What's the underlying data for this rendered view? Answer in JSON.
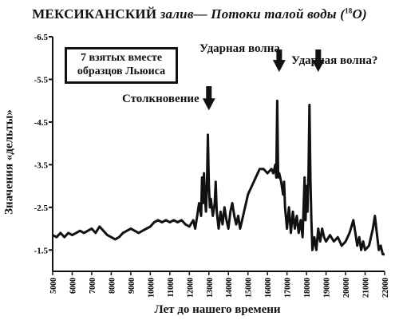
{
  "chart_data": {
    "type": "line",
    "title_main": "МЕКСИКАНСКИЙ",
    "title_rest": "залив— Потоки талой воды (",
    "title_sup": "18",
    "title_end": "O)",
    "xlabel": "Лет до нашего времени",
    "ylabel": "Значения «дельты»",
    "legend_text_1": "7 взятых вместе",
    "legend_text_2": "образцов Льюиса",
    "xlim": [
      5000,
      22000
    ],
    "ylim": [
      -1.0,
      -6.5
    ],
    "x_ticks": [
      "5000",
      "6000",
      "7000",
      "8000",
      "9000",
      "10000",
      "11000",
      "12000",
      "13000",
      "14000",
      "15000",
      "16000",
      "17000",
      "18000",
      "19000",
      "20000",
      "21000",
      "22000"
    ],
    "y_ticks": [
      {
        "value": -6.5,
        "label": "-6.5"
      },
      {
        "value": -5.5,
        "label": "-5.5"
      },
      {
        "value": -4.5,
        "label": "-4.5"
      },
      {
        "value": -3.5,
        "label": "-3.5"
      },
      {
        "value": -2.5,
        "label": "-2.5"
      },
      {
        "value": -1.5,
        "label": "-1.5"
      }
    ],
    "annotations": [
      {
        "label": "Столкновение",
        "x": 13000,
        "y": -4.7
      },
      {
        "label": "Ударная волна",
        "x": 16600,
        "y": -5.6
      },
      {
        "label": "Ударная волна?",
        "x": 18600,
        "y": -5.6
      }
    ],
    "series": [
      {
        "points": [
          [
            5000,
            -1.85
          ],
          [
            5200,
            -1.8
          ],
          [
            5400,
            -1.9
          ],
          [
            5600,
            -1.8
          ],
          [
            5800,
            -1.9
          ],
          [
            6000,
            -1.85
          ],
          [
            6200,
            -1.9
          ],
          [
            6400,
            -1.95
          ],
          [
            6600,
            -1.9
          ],
          [
            6800,
            -1.95
          ],
          [
            7000,
            -2.0
          ],
          [
            7200,
            -1.9
          ],
          [
            7400,
            -2.05
          ],
          [
            7600,
            -1.95
          ],
          [
            7800,
            -1.85
          ],
          [
            8000,
            -1.8
          ],
          [
            8200,
            -1.75
          ],
          [
            8400,
            -1.8
          ],
          [
            8600,
            -1.9
          ],
          [
            8800,
            -1.95
          ],
          [
            9000,
            -2.0
          ],
          [
            9200,
            -1.95
          ],
          [
            9400,
            -1.9
          ],
          [
            9600,
            -1.95
          ],
          [
            9800,
            -2.0
          ],
          [
            10000,
            -2.05
          ],
          [
            10200,
            -2.15
          ],
          [
            10400,
            -2.2
          ],
          [
            10600,
            -2.15
          ],
          [
            10800,
            -2.2
          ],
          [
            11000,
            -2.15
          ],
          [
            11200,
            -2.2
          ],
          [
            11400,
            -2.15
          ],
          [
            11600,
            -2.2
          ],
          [
            11800,
            -2.1
          ],
          [
            12000,
            -2.05
          ],
          [
            12200,
            -2.2
          ],
          [
            12300,
            -2.0
          ],
          [
            12400,
            -2.3
          ],
          [
            12500,
            -2.6
          ],
          [
            12600,
            -2.3
          ],
          [
            12650,
            -3.2
          ],
          [
            12700,
            -2.6
          ],
          [
            12750,
            -3.3
          ],
          [
            12800,
            -2.7
          ],
          [
            12850,
            -2.4
          ],
          [
            12900,
            -3.0
          ],
          [
            12950,
            -4.2
          ],
          [
            13000,
            -3.0
          ],
          [
            13050,
            -2.5
          ],
          [
            13100,
            -2.7
          ],
          [
            13200,
            -2.3
          ],
          [
            13300,
            -2.6
          ],
          [
            13350,
            -3.1
          ],
          [
            13400,
            -2.4
          ],
          [
            13500,
            -2.0
          ],
          [
            13600,
            -2.4
          ],
          [
            13700,
            -2.1
          ],
          [
            13800,
            -2.5
          ],
          [
            13900,
            -2.2
          ],
          [
            14000,
            -2.0
          ],
          [
            14100,
            -2.4
          ],
          [
            14200,
            -2.6
          ],
          [
            14300,
            -2.3
          ],
          [
            14400,
            -2.1
          ],
          [
            14500,
            -2.3
          ],
          [
            14600,
            -2.0
          ],
          [
            14700,
            -2.2
          ],
          [
            14800,
            -2.4
          ],
          [
            14900,
            -2.6
          ],
          [
            15000,
            -2.8
          ],
          [
            15200,
            -3.0
          ],
          [
            15400,
            -3.2
          ],
          [
            15600,
            -3.4
          ],
          [
            15800,
            -3.4
          ],
          [
            16000,
            -3.3
          ],
          [
            16200,
            -3.4
          ],
          [
            16300,
            -3.3
          ],
          [
            16400,
            -3.5
          ],
          [
            16450,
            -3.2
          ],
          [
            16500,
            -5.0
          ],
          [
            16550,
            -3.2
          ],
          [
            16600,
            -3.3
          ],
          [
            16700,
            -3.1
          ],
          [
            16800,
            -2.8
          ],
          [
            16850,
            -3.1
          ],
          [
            16900,
            -2.5
          ],
          [
            17000,
            -2.0
          ],
          [
            17100,
            -2.5
          ],
          [
            17200,
            -1.9
          ],
          [
            17300,
            -2.4
          ],
          [
            17400,
            -2.0
          ],
          [
            17500,
            -2.3
          ],
          [
            17600,
            -1.9
          ],
          [
            17700,
            -2.2
          ],
          [
            17800,
            -1.8
          ],
          [
            17900,
            -3.2
          ],
          [
            17950,
            -2.2
          ],
          [
            18000,
            -3.0
          ],
          [
            18050,
            -2.4
          ],
          [
            18100,
            -3.3
          ],
          [
            18150,
            -4.9
          ],
          [
            18200,
            -3.2
          ],
          [
            18250,
            -2.2
          ],
          [
            18300,
            -1.5
          ],
          [
            18400,
            -1.8
          ],
          [
            18500,
            -1.5
          ],
          [
            18600,
            -2.0
          ],
          [
            18700,
            -1.7
          ],
          [
            18800,
            -2.0
          ],
          [
            18900,
            -1.8
          ],
          [
            19000,
            -1.7
          ],
          [
            19200,
            -1.85
          ],
          [
            19400,
            -1.7
          ],
          [
            19600,
            -1.8
          ],
          [
            19800,
            -1.6
          ],
          [
            20000,
            -1.7
          ],
          [
            20200,
            -1.9
          ],
          [
            20400,
            -2.2
          ],
          [
            20500,
            -1.9
          ],
          [
            20600,
            -1.6
          ],
          [
            20700,
            -1.8
          ],
          [
            20800,
            -1.5
          ],
          [
            20900,
            -1.7
          ],
          [
            21000,
            -1.5
          ],
          [
            21200,
            -1.6
          ],
          [
            21400,
            -2.0
          ],
          [
            21500,
            -2.3
          ],
          [
            21600,
            -1.9
          ],
          [
            21700,
            -1.5
          ],
          [
            21800,
            -1.6
          ],
          [
            21900,
            -1.4
          ],
          [
            22000,
            -1.4
          ]
        ]
      }
    ]
  }
}
